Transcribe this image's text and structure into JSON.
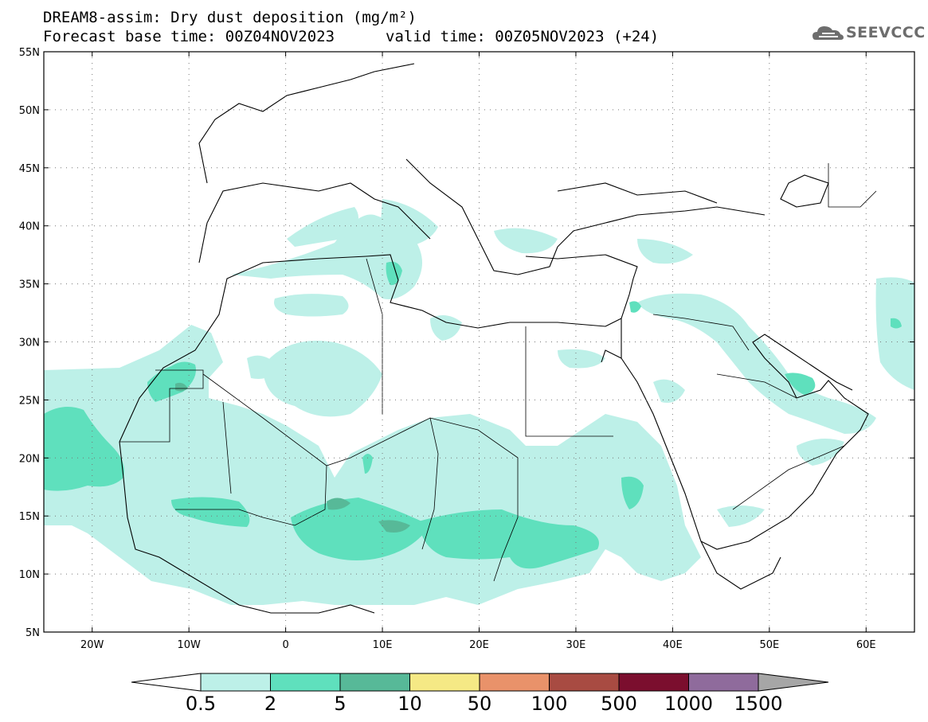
{
  "header": {
    "title": "DREAM8-assim: Dry dust deposition (mg/m²)",
    "base_time": "Forecast base time: 00Z04NOV2023",
    "valid_time": "valid time: 00Z05NOV2023 (+24)",
    "logo_text": "SEEVCCC",
    "logo_icon": "cloud-icon"
  },
  "map": {
    "lon_range": [
      -25,
      65
    ],
    "lat_range": [
      5,
      55
    ],
    "lat_labels": [
      "55N",
      "50N",
      "45N",
      "40N",
      "35N",
      "30N",
      "25N",
      "20N",
      "15N",
      "10N",
      "5N"
    ],
    "lat_values": [
      55,
      50,
      45,
      40,
      35,
      30,
      25,
      20,
      15,
      10,
      5
    ],
    "lon_labels": [
      "20W",
      "10W",
      "0",
      "10E",
      "20E",
      "30E",
      "40E",
      "50E",
      "60E"
    ],
    "lon_values": [
      -20,
      -10,
      0,
      10,
      20,
      30,
      40,
      50,
      60
    ],
    "grid": true
  },
  "colorbar": {
    "levels": [
      "0.5",
      "2",
      "5",
      "10",
      "50",
      "100",
      "500",
      "1000",
      "1500"
    ],
    "colors": [
      "#bdf0e8",
      "#5fe0bd",
      "#57b998",
      "#f5e985",
      "#e9926a",
      "#a84b42",
      "#7b0e2e",
      "#8f6b9c",
      "#a6a6a6"
    ],
    "low_color": "#ffffff"
  }
}
